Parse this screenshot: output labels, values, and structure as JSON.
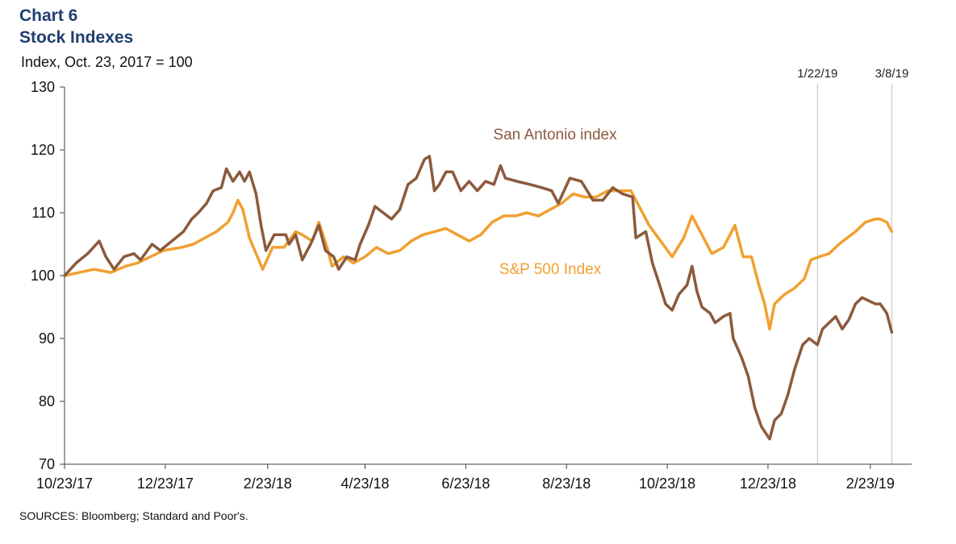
{
  "header": {
    "chart_number": "Chart 6",
    "title": "Stock Indexes"
  },
  "footer": {
    "source": "SOURCES:  Bloomberg; Standard and Poor's."
  },
  "colors": {
    "title": "#1f3f6e",
    "san_antonio": "#8b5a3c",
    "sp500": "#f0a030",
    "axis": "#404040",
    "reference_line": "#bfbfbf"
  },
  "chart_data": {
    "type": "line",
    "title": "Stock Indexes",
    "ylabel": "Index, Oct. 23, 2017 = 100",
    "xlabel": "",
    "ylim": [
      70,
      130
    ],
    "yticks": [
      70,
      80,
      90,
      100,
      110,
      120,
      130
    ],
    "xlim": [
      "2017-10-23",
      "2019-03-20"
    ],
    "xticks": [
      {
        "date": "2017-10-23",
        "label": "10/23/17"
      },
      {
        "date": "2017-12-23",
        "label": "12/23/17"
      },
      {
        "date": "2018-02-23",
        "label": "2/23/18"
      },
      {
        "date": "2018-04-23",
        "label": "4/23/18"
      },
      {
        "date": "2018-06-23",
        "label": "6/23/18"
      },
      {
        "date": "2018-08-23",
        "label": "8/23/18"
      },
      {
        "date": "2018-10-23",
        "label": "10/23/18"
      },
      {
        "date": "2018-12-23",
        "label": "12/23/18"
      },
      {
        "date": "2019-02-23",
        "label": "2/23/19"
      }
    ],
    "reference_lines": [
      {
        "date": "2019-01-22",
        "label": "1/22/19"
      },
      {
        "date": "2019-03-08",
        "label": "3/8/19"
      }
    ],
    "grid": false,
    "legend": "inline labels",
    "series": [
      {
        "name": "San Antonio index",
        "color": "#8b5a3c",
        "points": [
          [
            "2017-10-23",
            100.0
          ],
          [
            "2017-10-30",
            102.0
          ],
          [
            "2017-11-06",
            103.5
          ],
          [
            "2017-11-13",
            105.5
          ],
          [
            "2017-11-17",
            103.0
          ],
          [
            "2017-11-22",
            101.0
          ],
          [
            "2017-11-28",
            103.0
          ],
          [
            "2017-12-04",
            103.5
          ],
          [
            "2017-12-08",
            102.5
          ],
          [
            "2017-12-15",
            105.0
          ],
          [
            "2017-12-20",
            104.0
          ],
          [
            "2017-12-27",
            105.5
          ],
          [
            "2018-01-03",
            107.0
          ],
          [
            "2018-01-08",
            109.0
          ],
          [
            "2018-01-12",
            110.0
          ],
          [
            "2018-01-17",
            111.5
          ],
          [
            "2018-01-21",
            113.5
          ],
          [
            "2018-01-26",
            114.0
          ],
          [
            "2018-01-29",
            117.0
          ],
          [
            "2018-02-02",
            115.0
          ],
          [
            "2018-02-06",
            116.5
          ],
          [
            "2018-02-09",
            115.0
          ],
          [
            "2018-02-12",
            116.5
          ],
          [
            "2018-02-16",
            113.0
          ],
          [
            "2018-02-19",
            108.0
          ],
          [
            "2018-02-22",
            104.0
          ],
          [
            "2018-02-27",
            106.5
          ],
          [
            "2018-03-06",
            106.5
          ],
          [
            "2018-03-08",
            105.0
          ],
          [
            "2018-03-12",
            106.5
          ],
          [
            "2018-03-16",
            102.5
          ],
          [
            "2018-03-21",
            105.0
          ],
          [
            "2018-03-26",
            108.0
          ],
          [
            "2018-03-30",
            104.0
          ],
          [
            "2018-04-04",
            103.0
          ],
          [
            "2018-04-07",
            101.0
          ],
          [
            "2018-04-12",
            103.0
          ],
          [
            "2018-04-17",
            102.5
          ],
          [
            "2018-04-20",
            105.0
          ],
          [
            "2018-04-25",
            108.0
          ],
          [
            "2018-04-29",
            111.0
          ],
          [
            "2018-05-04",
            110.0
          ],
          [
            "2018-05-09",
            109.0
          ],
          [
            "2018-05-14",
            110.5
          ],
          [
            "2018-05-19",
            114.5
          ],
          [
            "2018-05-24",
            115.5
          ],
          [
            "2018-05-29",
            118.5
          ],
          [
            "2018-06-01",
            119.0
          ],
          [
            "2018-06-04",
            113.5
          ],
          [
            "2018-06-07",
            114.5
          ],
          [
            "2018-06-11",
            116.5
          ],
          [
            "2018-06-15",
            116.5
          ],
          [
            "2018-06-20",
            113.5
          ],
          [
            "2018-06-25",
            115.0
          ],
          [
            "2018-06-30",
            113.5
          ],
          [
            "2018-07-05",
            115.0
          ],
          [
            "2018-07-10",
            114.5
          ],
          [
            "2018-07-14",
            117.5
          ],
          [
            "2018-07-17",
            115.5
          ],
          [
            "2018-07-24",
            115.0
          ],
          [
            "2018-08-01",
            114.5
          ],
          [
            "2018-08-08",
            114.0
          ],
          [
            "2018-08-14",
            113.5
          ],
          [
            "2018-08-18",
            111.5
          ],
          [
            "2018-08-25",
            115.5
          ],
          [
            "2018-09-01",
            115.0
          ],
          [
            "2018-09-08",
            112.0
          ],
          [
            "2018-09-14",
            112.0
          ],
          [
            "2018-09-20",
            114.0
          ],
          [
            "2018-09-26",
            113.0
          ],
          [
            "2018-10-02",
            112.5
          ],
          [
            "2018-10-04",
            106.0
          ],
          [
            "2018-10-10",
            107.0
          ],
          [
            "2018-10-14",
            102.0
          ],
          [
            "2018-10-19",
            98.0
          ],
          [
            "2018-10-22",
            95.5
          ],
          [
            "2018-10-26",
            94.5
          ],
          [
            "2018-10-30",
            97.0
          ],
          [
            "2018-11-04",
            98.5
          ],
          [
            "2018-11-07",
            101.5
          ],
          [
            "2018-11-10",
            97.5
          ],
          [
            "2018-11-13",
            95.0
          ],
          [
            "2018-11-18",
            94.0
          ],
          [
            "2018-11-21",
            92.5
          ],
          [
            "2018-11-26",
            93.5
          ],
          [
            "2018-11-30",
            94.0
          ],
          [
            "2018-12-02",
            90.0
          ],
          [
            "2018-12-07",
            87.0
          ],
          [
            "2018-12-11",
            84.0
          ],
          [
            "2018-12-15",
            79.0
          ],
          [
            "2018-12-19",
            76.0
          ],
          [
            "2018-12-24",
            74.0
          ],
          [
            "2018-12-27",
            77.0
          ],
          [
            "2018-12-31",
            78.0
          ],
          [
            "2019-01-04",
            81.0
          ],
          [
            "2019-01-08",
            85.0
          ],
          [
            "2019-01-13",
            89.0
          ],
          [
            "2019-01-17",
            90.0
          ],
          [
            "2019-01-22",
            89.0
          ],
          [
            "2019-01-25",
            91.5
          ],
          [
            "2019-01-29",
            92.5
          ],
          [
            "2019-02-02",
            93.5
          ],
          [
            "2019-02-06",
            91.5
          ],
          [
            "2019-02-10",
            93.0
          ],
          [
            "2019-02-14",
            95.5
          ],
          [
            "2019-02-18",
            96.5
          ],
          [
            "2019-02-22",
            96.0
          ],
          [
            "2019-02-26",
            95.5
          ],
          [
            "2019-03-01",
            95.5
          ],
          [
            "2019-03-05",
            94.0
          ],
          [
            "2019-03-08",
            91.0
          ]
        ]
      },
      {
        "name": "S&P 500 Index",
        "color": "#f0a030",
        "points": [
          [
            "2017-10-23",
            100.0
          ],
          [
            "2017-11-01",
            100.5
          ],
          [
            "2017-11-10",
            101.0
          ],
          [
            "2017-11-20",
            100.5
          ],
          [
            "2017-11-29",
            101.5
          ],
          [
            "2017-12-06",
            102.0
          ],
          [
            "2017-12-14",
            103.0
          ],
          [
            "2017-12-22",
            104.0
          ],
          [
            "2018-01-02",
            104.5
          ],
          [
            "2018-01-09",
            105.0
          ],
          [
            "2018-01-16",
            106.0
          ],
          [
            "2018-01-23",
            107.0
          ],
          [
            "2018-01-30",
            108.5
          ],
          [
            "2018-02-02",
            110.0
          ],
          [
            "2018-02-05",
            112.0
          ],
          [
            "2018-02-08",
            110.5
          ],
          [
            "2018-02-12",
            106.0
          ],
          [
            "2018-02-16",
            103.5
          ],
          [
            "2018-02-20",
            101.0
          ],
          [
            "2018-02-26",
            104.5
          ],
          [
            "2018-03-05",
            104.5
          ],
          [
            "2018-03-12",
            107.0
          ],
          [
            "2018-03-16",
            106.5
          ],
          [
            "2018-03-22",
            105.5
          ],
          [
            "2018-03-26",
            108.5
          ],
          [
            "2018-03-31",
            104.5
          ],
          [
            "2018-04-03",
            101.5
          ],
          [
            "2018-04-10",
            103.0
          ],
          [
            "2018-04-16",
            102.0
          ],
          [
            "2018-04-23",
            103.0
          ],
          [
            "2018-04-30",
            104.5
          ],
          [
            "2018-05-07",
            103.5
          ],
          [
            "2018-05-14",
            104.0
          ],
          [
            "2018-05-21",
            105.5
          ],
          [
            "2018-05-28",
            106.5
          ],
          [
            "2018-06-04",
            107.0
          ],
          [
            "2018-06-11",
            107.5
          ],
          [
            "2018-06-18",
            106.5
          ],
          [
            "2018-06-25",
            105.5
          ],
          [
            "2018-07-02",
            106.5
          ],
          [
            "2018-07-09",
            108.5
          ],
          [
            "2018-07-16",
            109.5
          ],
          [
            "2018-07-23",
            109.5
          ],
          [
            "2018-07-30",
            110.0
          ],
          [
            "2018-08-06",
            109.5
          ],
          [
            "2018-08-13",
            110.5
          ],
          [
            "2018-08-20",
            111.5
          ],
          [
            "2018-08-27",
            113.0
          ],
          [
            "2018-09-03",
            112.5
          ],
          [
            "2018-09-10",
            112.5
          ],
          [
            "2018-09-17",
            113.5
          ],
          [
            "2018-09-24",
            113.5
          ],
          [
            "2018-10-01",
            113.5
          ],
          [
            "2018-10-08",
            110.0
          ],
          [
            "2018-10-12",
            108.0
          ],
          [
            "2018-10-19",
            105.5
          ],
          [
            "2018-10-26",
            103.0
          ],
          [
            "2018-11-02",
            106.0
          ],
          [
            "2018-11-07",
            109.5
          ],
          [
            "2018-11-14",
            106.0
          ],
          [
            "2018-11-19",
            103.5
          ],
          [
            "2018-11-26",
            104.5
          ],
          [
            "2018-12-03",
            108.0
          ],
          [
            "2018-12-08",
            103.0
          ],
          [
            "2018-12-13",
            103.0
          ],
          [
            "2018-12-17",
            99.0
          ],
          [
            "2018-12-21",
            95.5
          ],
          [
            "2018-12-24",
            91.5
          ],
          [
            "2018-12-27",
            95.5
          ],
          [
            "2019-01-02",
            97.0
          ],
          [
            "2019-01-08",
            98.0
          ],
          [
            "2019-01-14",
            99.5
          ],
          [
            "2019-01-18",
            102.5
          ],
          [
            "2019-01-23",
            103.0
          ],
          [
            "2019-01-29",
            103.5
          ],
          [
            "2019-02-04",
            105.0
          ],
          [
            "2019-02-09",
            106.0
          ],
          [
            "2019-02-14",
            107.0
          ],
          [
            "2019-02-20",
            108.5
          ],
          [
            "2019-02-26",
            109.0
          ],
          [
            "2019-03-01",
            109.0
          ],
          [
            "2019-03-05",
            108.5
          ],
          [
            "2019-03-08",
            107.0
          ]
        ]
      }
    ]
  }
}
